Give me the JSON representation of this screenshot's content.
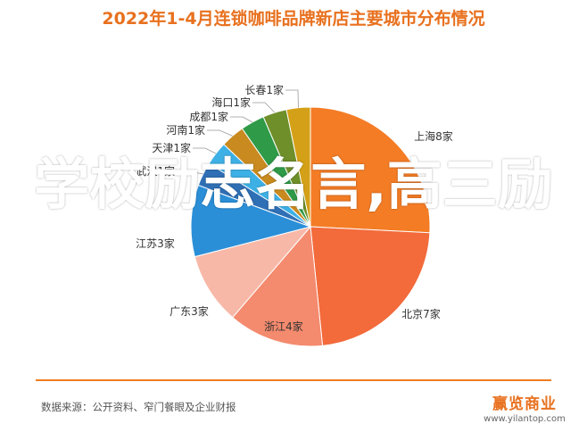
{
  "chart_data": {
    "type": "pie",
    "title": "2022年1-4月连锁咖啡品牌新店主要城市分布情况",
    "slices": [
      {
        "label": "上海8家",
        "value": 8,
        "color": "#f47c25"
      },
      {
        "label": "北京7家",
        "value": 7,
        "color": "#f36a3b"
      },
      {
        "label": "浙江4家",
        "value": 4,
        "color": "#f48a6e"
      },
      {
        "label": "广东3家",
        "value": 3,
        "color": "#f8b8a8"
      },
      {
        "label": "江苏3家",
        "value": 3,
        "color": "#2b8fd8"
      },
      {
        "label": "武汉1家",
        "value": 1,
        "color": "#2f6fb5"
      },
      {
        "label": "天津1家",
        "value": 1,
        "color": "#3db0e6"
      },
      {
        "label": "河南1家",
        "value": 1,
        "color": "#c98a1f"
      },
      {
        "label": "成都1家",
        "value": 1,
        "color": "#2f9a47"
      },
      {
        "label": "海口1家",
        "value": 1,
        "color": "#6e8f2a"
      },
      {
        "label": "长春1家",
        "value": 1,
        "color": "#d4a017"
      }
    ]
  },
  "source_text": "数据来源：公开资料、窄门餐眼及企业财报",
  "logo": {
    "main": "赢览商业",
    "url": "www.yilantop.com"
  },
  "watermark": "学校励志名言,高三励"
}
